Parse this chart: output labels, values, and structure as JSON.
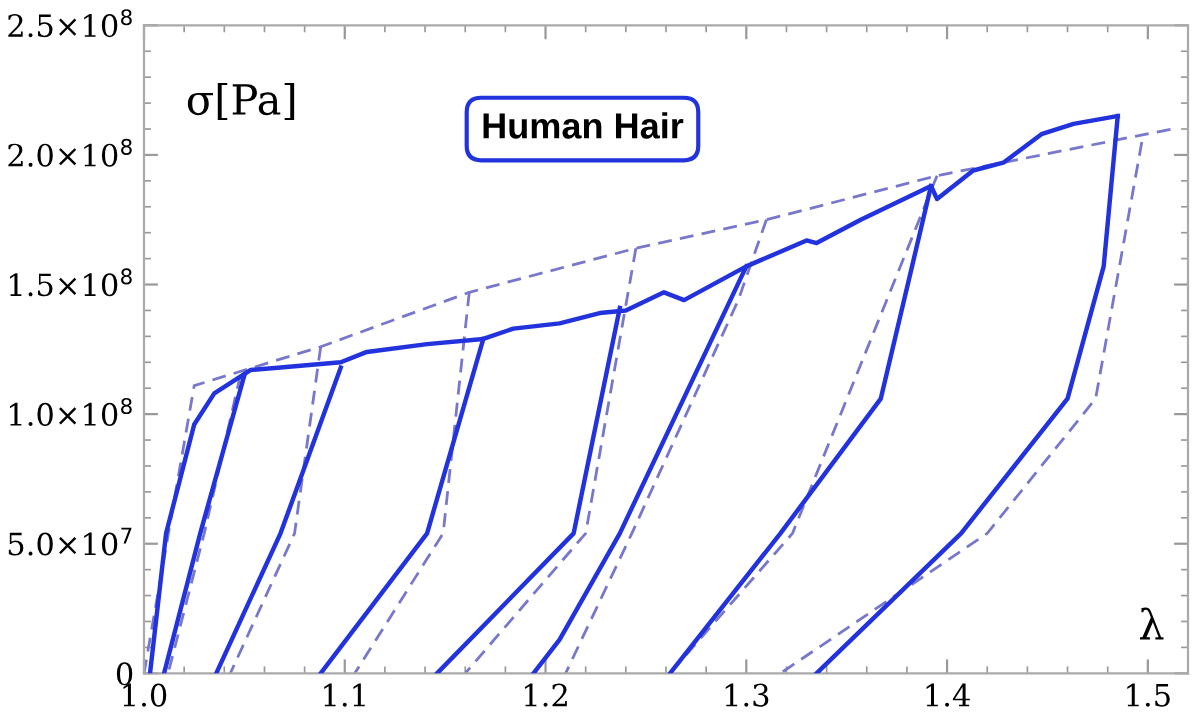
{
  "chart_data": {
    "type": "line",
    "title": "Human Hair",
    "xlabel": "λ",
    "ylabel": "σ[Pa]",
    "xlim": [
      1.0,
      1.52
    ],
    "ylim": [
      0,
      250000000
    ],
    "xticks": [
      {
        "value": 1.0,
        "label": "1.0"
      },
      {
        "value": 1.1,
        "label": "1.1"
      },
      {
        "value": 1.2,
        "label": "1.2"
      },
      {
        "value": 1.3,
        "label": "1.3"
      },
      {
        "value": 1.4,
        "label": "1.4"
      },
      {
        "value": 1.5,
        "label": "1.5"
      }
    ],
    "yticks": [
      0,
      {
        "value": 50000000,
        "label": "5.0×10$^{7}$"
      },
      {
        "value": 100000000,
        "label": "1.0×10$^{8}$"
      },
      {
        "value": 150000000,
        "label": "1.5×10$^{8}$"
      },
      {
        "value": 200000000,
        "label": "2.0×10$^{8}$"
      },
      {
        "value": 250000000,
        "label": "2.5×10$^{8}$"
      }
    ],
    "grid": false,
    "legend": false,
    "marker": "none",
    "series": [
      {
        "color": "#2233dd",
        "line_style": "solid",
        "x": [
          1.003,
          1.011,
          1.025,
          1.035,
          1.053,
          1.068,
          1.098,
          1.111,
          1.141,
          1.169,
          1.184,
          1.207,
          1.227,
          1.24,
          1.259,
          1.269,
          1.3,
          1.33,
          1.335,
          1.357,
          1.392,
          1.395,
          1.413,
          1.428,
          1.447,
          1.463,
          1.485
        ],
        "values": [
          0,
          54000000,
          96000000,
          108000000,
          117000000,
          118000000,
          120000000,
          124000000,
          127000000,
          129000000,
          133000000,
          135000000,
          139000000,
          140000000,
          147000000,
          144000000,
          157000000,
          167000000,
          166000000,
          175000000,
          188000000,
          183000000,
          194000000,
          197000000,
          208000000,
          212000000,
          215000000
        ]
      },
      {
        "color": "#2233dd",
        "line_style": "solid",
        "x": [
          1.05,
          1.028,
          1.01
        ],
        "values": [
          115000000,
          54000000,
          0
        ]
      },
      {
        "color": "#2233dd",
        "line_style": "solid",
        "x": [
          1.098,
          1.068,
          1.036
        ],
        "values": [
          118000000,
          54000000,
          0
        ]
      },
      {
        "color": "#2233dd",
        "line_style": "solid",
        "x": [
          1.169,
          1.141,
          1.088
        ],
        "values": [
          129000000,
          54000000,
          0
        ]
      },
      {
        "color": "#2233dd",
        "line_style": "solid",
        "x": [
          1.237,
          1.214,
          1.146
        ],
        "values": [
          141000000,
          54000000,
          0
        ]
      },
      {
        "color": "#2233dd",
        "line_style": "solid",
        "x": [
          1.3,
          1.237,
          1.207,
          1.194
        ],
        "values": [
          157000000,
          54000000,
          13000000,
          0
        ]
      },
      {
        "color": "#2233dd",
        "line_style": "solid",
        "x": [
          1.392,
          1.367,
          1.317,
          1.262
        ],
        "values": [
          188000000,
          106000000,
          54000000,
          0
        ]
      },
      {
        "color": "#2233dd",
        "line_style": "solid",
        "x": [
          1.485,
          1.478,
          1.46,
          1.407,
          1.335
        ],
        "values": [
          215000000,
          157000000,
          106000000,
          54000000,
          0
        ]
      },
      {
        "color": "#7777cc",
        "line_style": "dashed",
        "x": [
          1.0,
          1.025,
          1.088,
          1.162,
          1.245,
          1.31,
          1.395,
          1.512
        ],
        "values": [
          0,
          111000000,
          126000000,
          147000000,
          164000000,
          175000000,
          192000000,
          210000000
        ]
      },
      {
        "color": "#7777cc",
        "line_style": "dashed",
        "x": [
          1.048,
          1.03,
          1.012
        ],
        "values": [
          115000000,
          54000000,
          0
        ]
      },
      {
        "color": "#7777cc",
        "line_style": "dashed",
        "x": [
          1.088,
          1.075,
          1.043
        ],
        "values": [
          126000000,
          54000000,
          0
        ]
      },
      {
        "color": "#7777cc",
        "line_style": "dashed",
        "x": [
          1.162,
          1.149,
          1.105
        ],
        "values": [
          147000000,
          54000000,
          0
        ]
      },
      {
        "color": "#7777cc",
        "line_style": "dashed",
        "x": [
          1.245,
          1.22,
          1.16
        ],
        "values": [
          164000000,
          54000000,
          0
        ]
      },
      {
        "color": "#7777cc",
        "line_style": "dashed",
        "x": [
          1.31,
          1.296,
          1.243,
          1.21
        ],
        "values": [
          175000000,
          144000000,
          54000000,
          0
        ]
      },
      {
        "color": "#7777cc",
        "line_style": "dashed",
        "x": [
          1.395,
          1.323,
          1.262
        ],
        "values": [
          192000000,
          54000000,
          0
        ]
      },
      {
        "color": "#7777cc",
        "line_style": "dashed",
        "x": [
          1.497,
          1.474,
          1.42,
          1.317
        ],
        "values": [
          205000000,
          106000000,
          54000000,
          0
        ]
      }
    ]
  }
}
